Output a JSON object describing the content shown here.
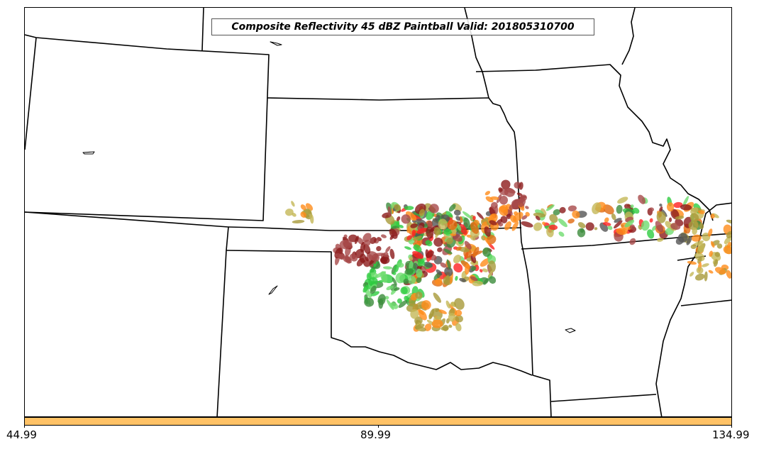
{
  "title": "Composite Reflectivity 45 dBZ Paintball Valid: 201805310700",
  "colorbar": {
    "color": "#ffc266",
    "ticks": [
      "44.99",
      "89.99",
      "134.99"
    ]
  },
  "palette": {
    "boundary": "#000000",
    "olive": "#a89a3a",
    "khaki": "#c4b857",
    "dark_red": "#8b1a1a",
    "brown_red": "#a84a4a",
    "orange": "#ff8c1a",
    "dark_orange": "#e06a10",
    "green": "#2ecc40",
    "light_green": "#6fdc6f",
    "dark_green": "#3c8c3c",
    "gray": "#555555",
    "red": "#ff2020"
  }
}
